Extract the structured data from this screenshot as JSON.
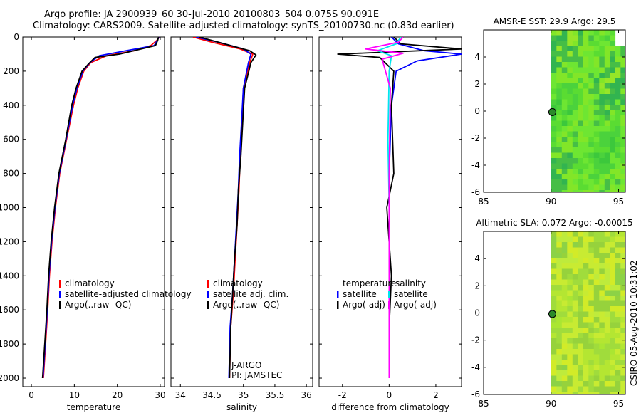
{
  "header": {
    "line1": "Argo profile: JA 2900939_60 30-Jul-2010 20100803_504 0.075S 90.091E",
    "line2": "Climatology: CARS2009. Satellite-adjusted climatology: synTS_20100730.nc (0.83d earlier)"
  },
  "side_label": "CSIRO 05-Aug-2010 10:31:02",
  "colors": {
    "red": "#ff0000",
    "blue": "#0000ff",
    "black": "#000000",
    "cyan": "#00e5ee",
    "magenta": "#ff00ff",
    "map_green": "#5ad23c",
    "map_yellow": "#b4e632"
  },
  "chart_data": [
    {
      "type": "line",
      "name": "temperature-profile",
      "xlabel": "temperature",
      "xlim": [
        -2,
        31
      ],
      "ylim": [
        2050,
        0
      ],
      "xticks": [
        0,
        10,
        20,
        30
      ],
      "yticks": [
        0,
        200,
        400,
        600,
        800,
        1000,
        1200,
        1400,
        1600,
        1800,
        2000
      ],
      "series": [
        {
          "name": "climatology",
          "color": "#ff0000",
          "x": [
            29.8,
            29.2,
            27.8,
            24.0,
            17.5,
            13.8,
            12.2,
            10.8,
            9.8,
            8.2,
            6.6,
            5.6,
            4.8,
            4.2,
            3.8,
            3.3,
            2.8
          ],
          "y": [
            0,
            20,
            50,
            80,
            110,
            150,
            200,
            300,
            400,
            600,
            800,
            1000,
            1200,
            1400,
            1600,
            1800,
            2000
          ]
        },
        {
          "name": "satellite-adjusted climatology",
          "color": "#0000ff",
          "x": [
            29.7,
            29.3,
            28.6,
            22.0,
            15.8,
            13.6,
            12.0,
            10.6,
            9.6,
            8.1,
            6.5,
            5.5,
            4.7,
            4.1,
            3.7,
            3.2,
            2.7
          ],
          "y": [
            0,
            20,
            50,
            80,
            110,
            150,
            200,
            300,
            400,
            600,
            800,
            1000,
            1200,
            1400,
            1600,
            1800,
            2000
          ]
        },
        {
          "name": "Argo(..raw -QC)",
          "color": "#000000",
          "x": [
            29.6,
            29.4,
            28.9,
            20.5,
            14.8,
            13.2,
            11.8,
            10.4,
            9.4,
            8.0,
            6.4,
            5.4,
            4.6,
            4.0,
            3.6,
            3.1,
            2.6
          ],
          "y": [
            0,
            20,
            50,
            100,
            120,
            160,
            200,
            300,
            400,
            600,
            800,
            1000,
            1200,
            1400,
            1600,
            1800,
            2000
          ]
        }
      ],
      "legend": {
        "placement": "lower-right",
        "entries": [
          "climatology",
          "satellite-adjusted climatology",
          "Argo(..raw -QC)"
        ]
      }
    },
    {
      "type": "line",
      "name": "salinity-profile",
      "xlabel": "salinity",
      "xlim": [
        33.85,
        36.1
      ],
      "ylim": [
        2050,
        0
      ],
      "xticks": [
        34,
        34.5,
        35,
        35.5,
        36
      ],
      "xtick_labels": [
        "34",
        "34.5",
        "35",
        "35.5",
        "36"
      ],
      "yticks": [
        0,
        200,
        400,
        600,
        800,
        1000,
        1200,
        1400,
        1600,
        1800,
        2000
      ],
      "series": [
        {
          "name": "climatology",
          "color": "#ff0000",
          "x": [
            34.2,
            34.5,
            34.95,
            35.15,
            35.1,
            35.0,
            34.98,
            34.95,
            34.93,
            34.9,
            34.87,
            34.84,
            34.8,
            34.78
          ],
          "y": [
            0,
            30,
            70,
            100,
            150,
            300,
            500,
            700,
            900,
            1100,
            1300,
            1500,
            1700,
            2000
          ]
        },
        {
          "name": "satellite adj. clim.",
          "color": "#0000ff",
          "x": [
            34.25,
            34.6,
            35.0,
            35.12,
            35.08,
            35.0,
            34.97,
            34.94,
            34.92,
            34.89,
            34.86,
            34.83,
            34.79,
            34.77
          ],
          "y": [
            0,
            30,
            70,
            100,
            150,
            300,
            500,
            700,
            900,
            1100,
            1300,
            1500,
            1700,
            2000
          ]
        },
        {
          "name": "Argo(..raw -QC)",
          "color": "#000000",
          "x": [
            34.3,
            34.7,
            35.1,
            35.2,
            35.12,
            35.02,
            34.99,
            34.96,
            34.92,
            34.9,
            34.86,
            34.83,
            34.8,
            34.78
          ],
          "y": [
            0,
            40,
            80,
            105,
            150,
            300,
            500,
            700,
            900,
            1100,
            1300,
            1500,
            1700,
            2000
          ]
        }
      ],
      "legend": {
        "placement": "lower-right",
        "entries": [
          "climatology",
          "satellite adj. clim.",
          "Argo(..raw -QC)"
        ]
      },
      "annotations": [
        "J-ARGO",
        "PI: JAMSTEC"
      ]
    },
    {
      "type": "line",
      "name": "difference-profile",
      "xlabel": "difference from climatology",
      "xlim": [
        -3.0,
        3.1
      ],
      "ylim": [
        2050,
        0
      ],
      "xticks": [
        -2,
        0,
        2
      ],
      "yticks": [
        0,
        200,
        400,
        600,
        800,
        1000,
        1200,
        1400,
        1600,
        1800,
        2000
      ],
      "series": [
        {
          "name": "temperature satellite",
          "color": "#0000ff",
          "x": [
            0.1,
            0.4,
            1.5,
            3.1,
            1.2,
            0.3,
            0.1,
            0.0,
            0.0,
            0.0,
            0.0
          ],
          "y": [
            0,
            40,
            80,
            100,
            140,
            200,
            400,
            800,
            1200,
            1600,
            2000
          ]
        },
        {
          "name": "temperature Argo(-adj)",
          "color": "#000000",
          "x": [
            0.2,
            0.5,
            3.1,
            -2.2,
            -0.4,
            0.2,
            0.1,
            0.2,
            -0.1,
            0.1,
            0.0,
            0.0
          ],
          "y": [
            0,
            40,
            70,
            100,
            120,
            200,
            400,
            800,
            1000,
            1400,
            1700,
            2000
          ]
        },
        {
          "name": "salinity satellite",
          "color": "#00e5ee",
          "x": [
            0.5,
            0.3,
            -0.5,
            0.1,
            0.0,
            -0.05,
            0.0,
            0.0,
            0.0
          ],
          "y": [
            0,
            40,
            80,
            110,
            200,
            600,
            1000,
            1500,
            2000
          ]
        },
        {
          "name": "salinity Argo(-adj)",
          "color": "#ff00ff",
          "x": [
            0.6,
            0.4,
            -1.0,
            0.6,
            -0.3,
            0.05,
            0.0,
            0.0,
            0.0
          ],
          "y": [
            0,
            30,
            70,
            95,
            130,
            300,
            800,
            1400,
            2000
          ]
        }
      ],
      "legend": {
        "placement": "lower-center",
        "headers": [
          "temperature",
          "salinity"
        ],
        "entries": [
          "satellite",
          "Argo(-adj)",
          "satellite",
          "Argo(-adj)"
        ]
      }
    },
    {
      "type": "heatmap",
      "name": "sst-map",
      "title": "AMSR-E SST: 29.9 Argo: 29.5",
      "xlim": [
        85,
        95.5
      ],
      "ylim": [
        -6,
        6
      ],
      "xticks": [
        85,
        90,
        95
      ],
      "yticks": [
        -6,
        -4,
        -2,
        0,
        2,
        4
      ],
      "data_lon_range": [
        90,
        95.5
      ],
      "argo_position": {
        "lon": 90.091,
        "lat": -0.075
      }
    },
    {
      "type": "heatmap",
      "name": "sla-map",
      "title": "Altimetric SLA: 0.072 Argo: -0.00015",
      "xlim": [
        85,
        95.5
      ],
      "ylim": [
        -6,
        6
      ],
      "xticks": [
        85,
        90,
        95
      ],
      "yticks": [
        -6,
        -4,
        -2,
        0,
        2,
        4
      ],
      "data_lon_range": [
        90,
        95.5
      ],
      "argo_position": {
        "lon": 90.091,
        "lat": -0.075
      }
    }
  ]
}
